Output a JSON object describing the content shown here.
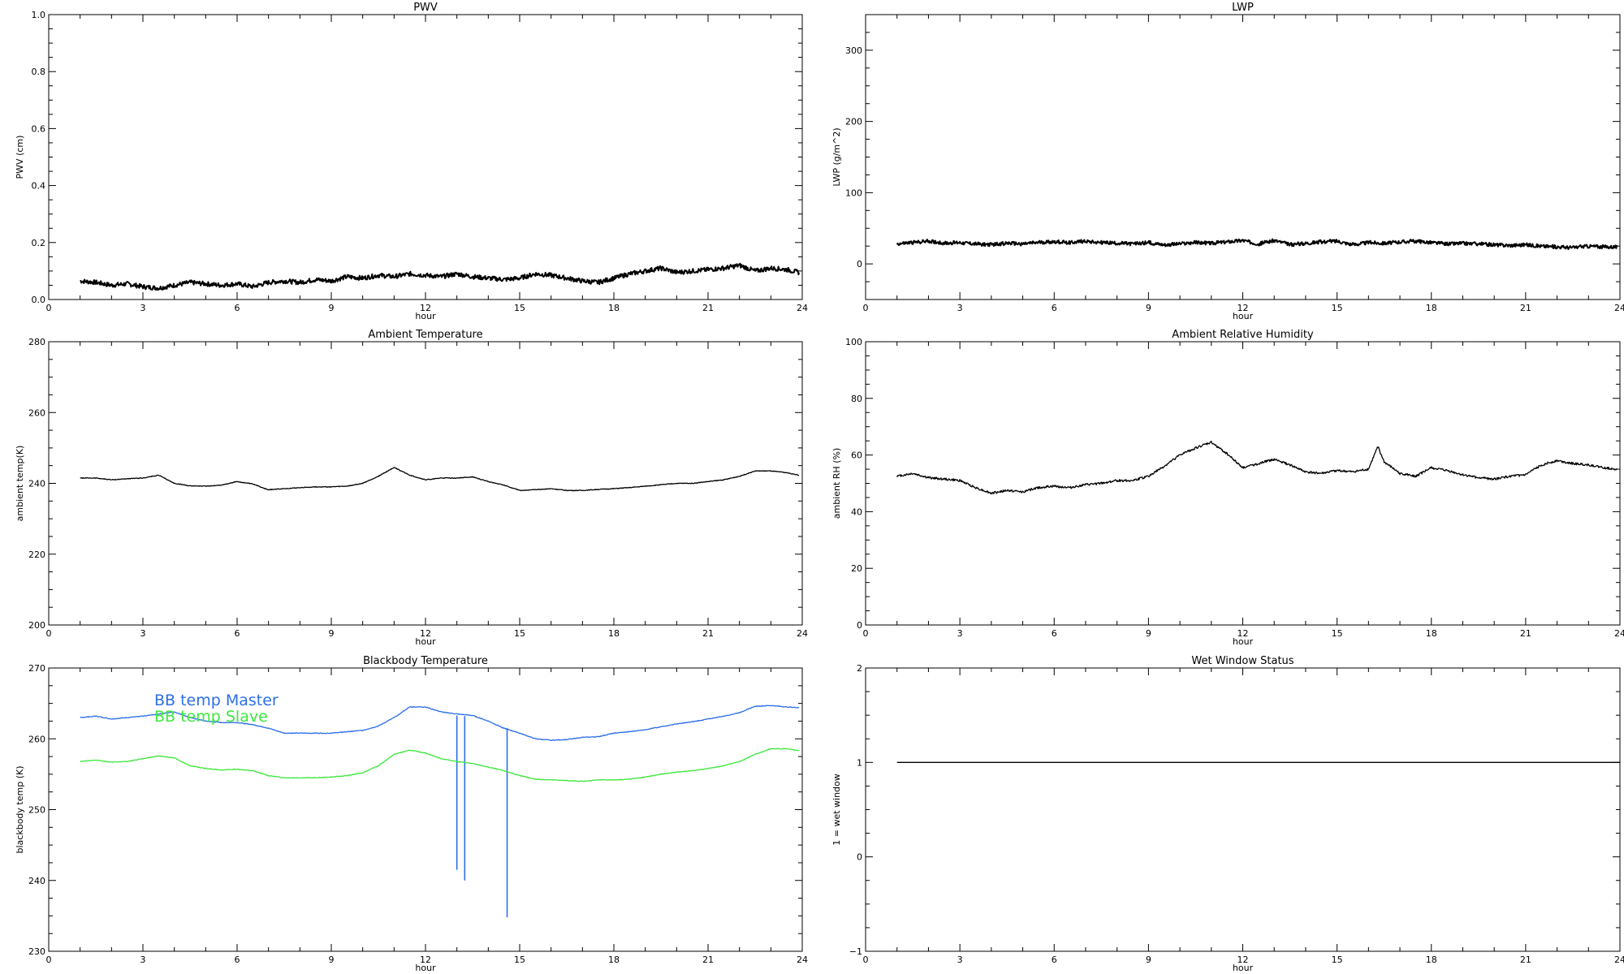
{
  "chart_data": [
    {
      "id": "pwv",
      "type": "line",
      "title": "PWV",
      "xlabel": "hour",
      "ylabel": "PWV (cm)",
      "xlim": [
        0,
        24
      ],
      "ylim": [
        0,
        1.0
      ],
      "xticks": [
        0,
        3,
        6,
        9,
        12,
        15,
        18,
        21,
        24
      ],
      "yticks": [
        0,
        0.2,
        0.4,
        0.6,
        0.8,
        1.0
      ],
      "ytick_labels": [
        "0.0",
        "0.2",
        "0.4",
        "0.6",
        "0.8",
        "1.0"
      ],
      "noise": 0.008,
      "series": [
        {
          "color": "#000000",
          "x": [
            1.0,
            1.5,
            2.0,
            2.5,
            3.0,
            3.5,
            4.0,
            4.5,
            5.0,
            5.5,
            6.0,
            6.5,
            7.0,
            7.5,
            8.0,
            8.5,
            9.0,
            9.5,
            10.0,
            10.5,
            11.0,
            11.5,
            12.0,
            12.5,
            13.0,
            13.5,
            14.0,
            14.5,
            15.0,
            15.5,
            16.0,
            16.5,
            17.0,
            17.5,
            18.0,
            18.5,
            19.0,
            19.5,
            20.0,
            20.5,
            21.0,
            21.5,
            22.0,
            22.5,
            23.0,
            23.5,
            23.9
          ],
          "values": [
            0.065,
            0.06,
            0.05,
            0.055,
            0.045,
            0.04,
            0.05,
            0.06,
            0.055,
            0.05,
            0.055,
            0.045,
            0.06,
            0.065,
            0.06,
            0.07,
            0.065,
            0.08,
            0.075,
            0.085,
            0.08,
            0.09,
            0.085,
            0.08,
            0.09,
            0.08,
            0.075,
            0.07,
            0.075,
            0.09,
            0.085,
            0.075,
            0.065,
            0.06,
            0.075,
            0.09,
            0.1,
            0.11,
            0.095,
            0.1,
            0.105,
            0.11,
            0.12,
            0.1,
            0.11,
            0.105,
            0.095
          ]
        }
      ]
    },
    {
      "id": "lwp",
      "type": "line",
      "title": "LWP",
      "xlabel": "hour",
      "ylabel": "LWP (g/m^2)",
      "xlim": [
        0,
        24
      ],
      "ylim": [
        -50,
        350
      ],
      "xticks": [
        0,
        3,
        6,
        9,
        12,
        15,
        18,
        21,
        24
      ],
      "yticks": [
        0,
        100,
        200,
        300
      ],
      "noise": 2.5,
      "series": [
        {
          "color": "#000000",
          "x": [
            1.0,
            1.5,
            2.0,
            2.5,
            3.0,
            3.5,
            4.0,
            4.5,
            5.0,
            5.5,
            6.0,
            6.5,
            7.0,
            7.5,
            8.0,
            8.5,
            9.0,
            9.5,
            10.0,
            10.5,
            11.0,
            11.5,
            12.0,
            12.5,
            13.0,
            13.5,
            14.0,
            14.5,
            15.0,
            15.5,
            16.0,
            16.5,
            17.0,
            17.5,
            18.0,
            18.5,
            19.0,
            19.5,
            20.0,
            20.5,
            21.0,
            21.5,
            22.0,
            22.5,
            23.0,
            23.5,
            23.9
          ],
          "values": [
            28,
            30,
            32,
            29,
            30,
            28,
            27,
            29,
            28,
            30,
            31,
            30,
            32,
            30,
            29,
            28,
            30,
            27,
            28,
            30,
            29,
            31,
            33,
            28,
            33,
            27,
            29,
            31,
            32,
            27,
            30,
            29,
            31,
            32,
            30,
            28,
            29,
            28,
            27,
            26,
            27,
            25,
            24,
            23,
            25,
            24,
            24
          ]
        }
      ]
    },
    {
      "id": "ambient_temp",
      "type": "line",
      "title": "Ambient Temperature",
      "xlabel": "hour",
      "ylabel": "ambient temp(K)",
      "xlim": [
        0,
        24
      ],
      "ylim": [
        200,
        280
      ],
      "xticks": [
        0,
        3,
        6,
        9,
        12,
        15,
        18,
        21,
        24
      ],
      "yticks": [
        200,
        220,
        240,
        260,
        280
      ],
      "noise": 0.1,
      "series": [
        {
          "color": "#000000",
          "x": [
            1.0,
            1.5,
            2.0,
            2.5,
            3.0,
            3.5,
            4.0,
            4.5,
            5.0,
            5.5,
            6.0,
            6.5,
            7.0,
            7.5,
            8.0,
            8.5,
            9.0,
            9.5,
            10.0,
            10.5,
            11.0,
            11.5,
            12.0,
            12.5,
            13.0,
            13.5,
            14.0,
            14.5,
            15.0,
            15.5,
            16.0,
            16.5,
            17.0,
            17.5,
            18.0,
            18.5,
            19.0,
            19.5,
            20.0,
            20.5,
            21.0,
            21.5,
            22.0,
            22.5,
            23.0,
            23.5,
            23.9
          ],
          "values": [
            241.5,
            241.5,
            241.0,
            241.3,
            241.5,
            242.3,
            240.0,
            239.3,
            239.2,
            239.5,
            240.5,
            239.8,
            238.2,
            238.5,
            238.8,
            239.0,
            239.0,
            239.2,
            240.0,
            242.0,
            244.5,
            242.3,
            241.0,
            241.5,
            241.5,
            241.8,
            240.5,
            239.5,
            238.0,
            238.2,
            238.5,
            238.0,
            238.0,
            238.3,
            238.5,
            238.8,
            239.2,
            239.6,
            240.0,
            240.0,
            240.5,
            241.0,
            242.0,
            243.5,
            243.5,
            243.0,
            242.3
          ]
        }
      ]
    },
    {
      "id": "ambient_rh",
      "type": "line",
      "title": "Ambient Relative Humidity",
      "xlabel": "hour",
      "ylabel": "ambient RH (%)",
      "xlim": [
        0,
        24
      ],
      "ylim": [
        0,
        100
      ],
      "xticks": [
        0,
        3,
        6,
        9,
        12,
        15,
        18,
        21,
        24
      ],
      "yticks": [
        0,
        20,
        40,
        60,
        80,
        100
      ],
      "noise": 0.4,
      "series": [
        {
          "color": "#000000",
          "x": [
            1.0,
            1.5,
            2.0,
            2.5,
            3.0,
            3.5,
            4.0,
            4.5,
            5.0,
            5.5,
            6.0,
            6.5,
            7.0,
            7.5,
            8.0,
            8.5,
            9.0,
            9.5,
            10.0,
            10.5,
            11.0,
            11.5,
            12.0,
            12.5,
            13.0,
            13.5,
            14.0,
            14.5,
            15.0,
            15.5,
            16.0,
            16.3,
            16.5,
            17.0,
            17.5,
            18.0,
            18.5,
            19.0,
            19.5,
            20.0,
            20.5,
            21.0,
            21.5,
            22.0,
            22.5,
            23.0,
            23.5,
            23.9
          ],
          "values": [
            52.5,
            53.5,
            52.0,
            51.5,
            51.0,
            48.5,
            46.5,
            47.5,
            47.0,
            48.5,
            49.0,
            48.5,
            49.5,
            50.0,
            51.0,
            51.0,
            52.5,
            56.0,
            60.0,
            62.5,
            64.5,
            60.5,
            55.5,
            57.0,
            58.5,
            56.5,
            54.0,
            53.5,
            54.5,
            54.0,
            55.0,
            63.0,
            57.5,
            53.5,
            52.5,
            55.5,
            54.5,
            53.0,
            52.0,
            51.5,
            52.5,
            53.0,
            56.5,
            58.0,
            57.0,
            56.5,
            55.5,
            55.0
          ]
        }
      ]
    },
    {
      "id": "blackbody_temp",
      "type": "line",
      "title": "Blackbody Temperature",
      "xlabel": "hour",
      "ylabel": "blackbody temp (K)",
      "xlim": [
        0,
        24
      ],
      "ylim": [
        230,
        270
      ],
      "xticks": [
        0,
        3,
        6,
        9,
        12,
        15,
        18,
        21,
        24
      ],
      "yticks": [
        230,
        240,
        250,
        260,
        270
      ],
      "noise": 0.05,
      "legend": "top-left",
      "series": [
        {
          "name": "BB temp Master",
          "color": "#2c6fe6",
          "x": [
            1.0,
            1.5,
            2.0,
            2.5,
            3.0,
            3.5,
            4.0,
            4.5,
            5.0,
            5.5,
            6.0,
            6.5,
            7.0,
            7.5,
            8.0,
            8.5,
            9.0,
            9.5,
            10.0,
            10.5,
            11.0,
            11.5,
            12.0,
            12.5,
            13.0,
            13.5,
            14.0,
            14.5,
            15.0,
            15.5,
            16.0,
            16.5,
            17.0,
            17.5,
            18.0,
            18.5,
            19.0,
            19.5,
            20.0,
            20.5,
            21.0,
            21.5,
            22.0,
            22.5,
            23.0,
            23.5,
            23.9
          ],
          "values": [
            263.0,
            263.2,
            262.8,
            263.0,
            263.2,
            263.5,
            263.8,
            263.0,
            262.5,
            262.3,
            262.3,
            262.0,
            261.5,
            260.8,
            260.8,
            260.8,
            260.8,
            261.0,
            261.2,
            261.8,
            263.0,
            264.5,
            264.5,
            263.8,
            263.5,
            263.3,
            262.5,
            261.5,
            260.8,
            260.0,
            259.8,
            259.9,
            260.2,
            260.3,
            260.8,
            261.0,
            261.3,
            261.7,
            262.1,
            262.4,
            262.8,
            263.2,
            263.7,
            264.6,
            264.7,
            264.5,
            264.4
          ],
          "spikes": [
            {
              "x": 13.0,
              "values": [
                263.3,
                241.5
              ]
            },
            {
              "x": 13.25,
              "values": [
                263.2,
                240.0
              ]
            },
            {
              "x": 14.6,
              "values": [
                261.5,
                234.8
              ]
            }
          ]
        },
        {
          "name": "BB temp Slave",
          "color": "#3ee83e",
          "x": [
            1.0,
            1.5,
            2.0,
            2.5,
            3.0,
            3.5,
            4.0,
            4.5,
            5.0,
            5.5,
            6.0,
            6.5,
            7.0,
            7.5,
            8.0,
            8.5,
            9.0,
            9.5,
            10.0,
            10.5,
            11.0,
            11.5,
            12.0,
            12.5,
            13.0,
            13.5,
            14.0,
            14.5,
            15.0,
            15.5,
            16.0,
            16.5,
            17.0,
            17.5,
            18.0,
            18.5,
            19.0,
            19.5,
            20.0,
            20.5,
            21.0,
            21.5,
            22.0,
            22.5,
            23.0,
            23.5,
            23.9
          ],
          "values": [
            256.8,
            257.0,
            256.7,
            256.8,
            257.2,
            257.6,
            257.3,
            256.2,
            255.8,
            255.6,
            255.7,
            255.5,
            254.8,
            254.5,
            254.5,
            254.5,
            254.6,
            254.8,
            255.2,
            256.2,
            257.8,
            258.4,
            258.0,
            257.2,
            256.8,
            256.5,
            256.0,
            255.5,
            254.8,
            254.3,
            254.2,
            254.1,
            254.0,
            254.2,
            254.2,
            254.3,
            254.6,
            255.0,
            255.3,
            255.5,
            255.8,
            256.2,
            256.8,
            257.8,
            258.6,
            258.6,
            258.3
          ]
        }
      ]
    },
    {
      "id": "wet_window",
      "type": "line",
      "title": "Wet Window Status",
      "xlabel": "hour",
      "ylabel": "1 = wet window",
      "xlim": [
        0,
        24
      ],
      "ylim": [
        -1,
        2
      ],
      "xticks": [
        0,
        3,
        6,
        9,
        12,
        15,
        18,
        21,
        24
      ],
      "yticks": [
        -1,
        0,
        1,
        2
      ],
      "ytick_labels": [
        "−1",
        "0",
        "1",
        "2"
      ],
      "noise": 0,
      "series": [
        {
          "color": "#000000",
          "x": [
            1.0,
            24.0
          ],
          "values": [
            1,
            1
          ]
        }
      ]
    }
  ]
}
